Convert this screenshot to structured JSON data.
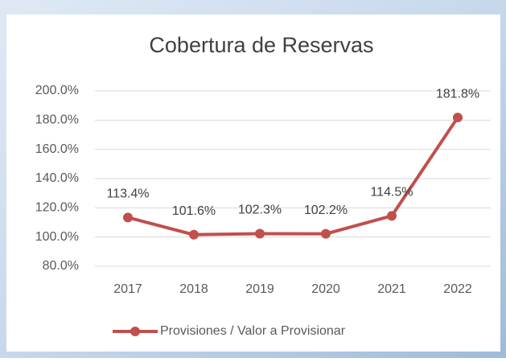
{
  "chart_data": {
    "type": "line",
    "title": "Cobertura de Reservas",
    "categories": [
      "2017",
      "2018",
      "2019",
      "2020",
      "2021",
      "2022"
    ],
    "series": [
      {
        "name": "Provisiones / Valor a Provisionar",
        "color": "#c0504d",
        "values": [
          113.4,
          101.6,
          102.3,
          102.2,
          114.5,
          181.8
        ],
        "value_labels": [
          "113.4%",
          "101.6%",
          "102.3%",
          "102.2%",
          "114.5%",
          "181.8%"
        ]
      }
    ],
    "ylim": [
      80,
      200
    ],
    "yticks": [
      {
        "value": 80,
        "label": "80.0%"
      },
      {
        "value": 100,
        "label": "100.0%"
      },
      {
        "value": 120,
        "label": "120.0%"
      },
      {
        "value": 140,
        "label": "140.0%"
      },
      {
        "value": 160,
        "label": "160.0%"
      },
      {
        "value": 180,
        "label": "180.0%"
      },
      {
        "value": 200,
        "label": "200.0%"
      }
    ],
    "grid": true,
    "legend": "bottom"
  }
}
